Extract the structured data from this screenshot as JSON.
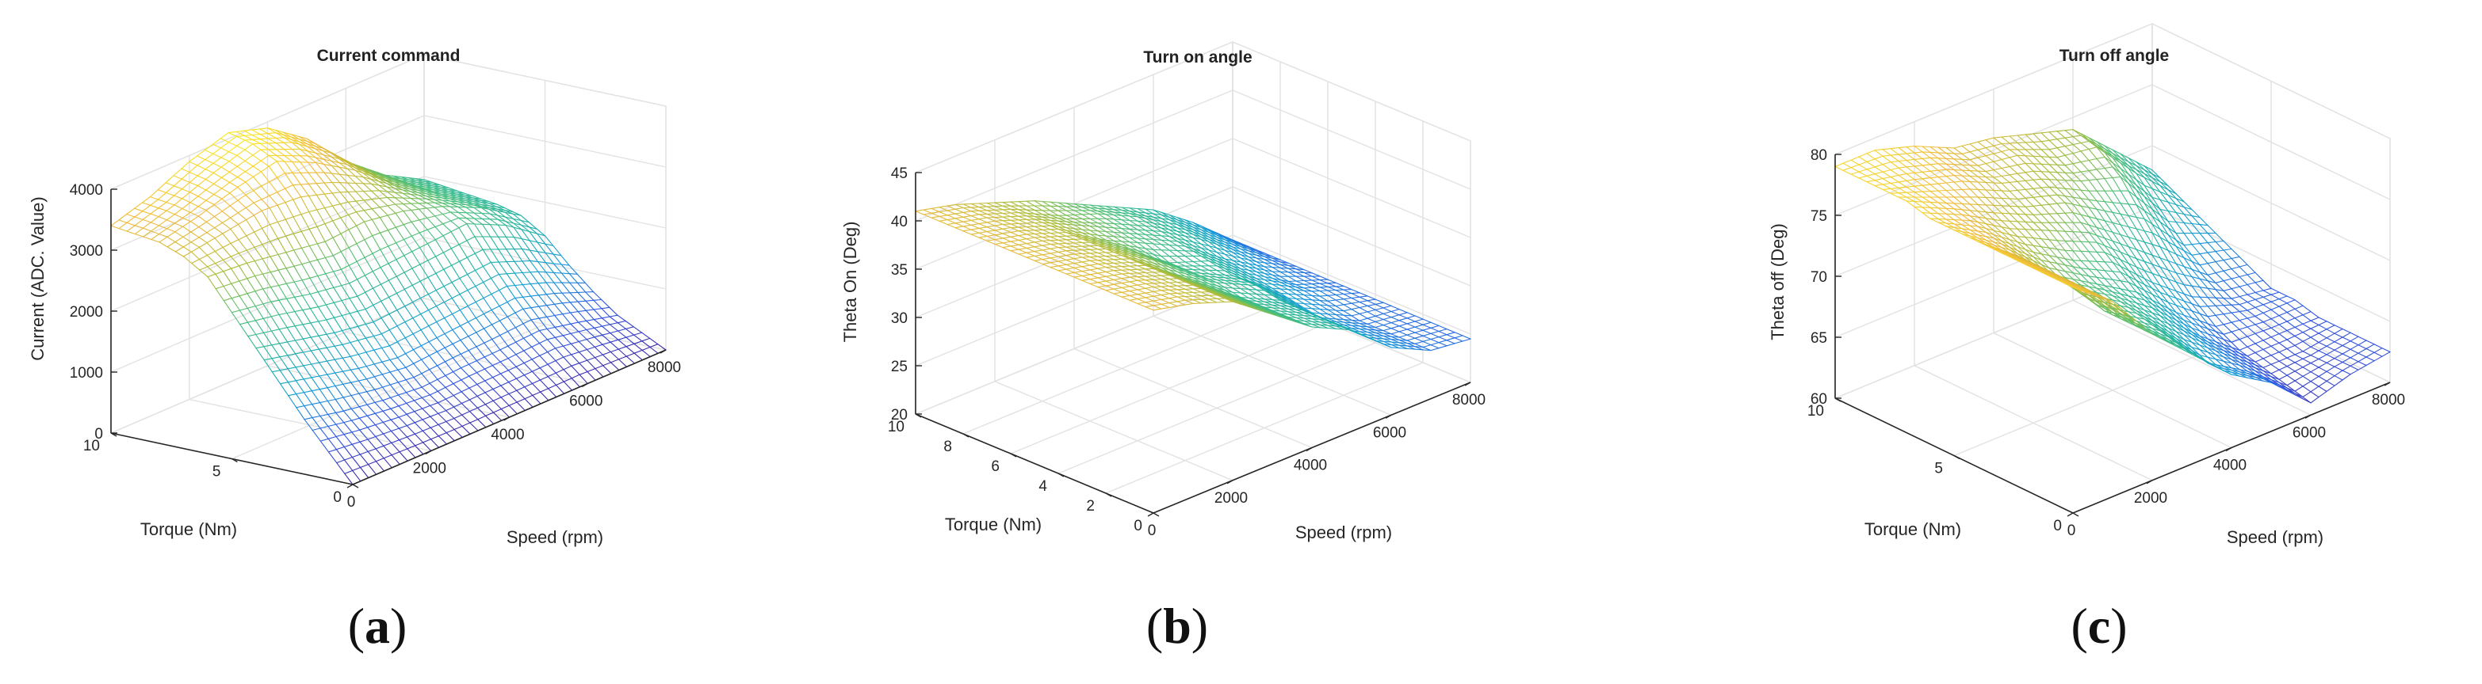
{
  "figure": {
    "captions": [
      "a",
      "b",
      "c"
    ]
  },
  "colormap": [
    "#3e26a8",
    "#2e5ae6",
    "#149bd6",
    "#21b3a4",
    "#4bbf7a",
    "#a9bd3b",
    "#f0ba3a",
    "#f9e424"
  ],
  "chart_data": [
    {
      "type": "surface-mesh",
      "panel": "a",
      "title": "Current command",
      "xlabel": "Speed (rpm)",
      "ylabel": "Torque (Nm)",
      "zlabel": "Current (ADC. Value)",
      "xlim": [
        0,
        8000
      ],
      "ylim": [
        0,
        10
      ],
      "zlim": [
        0,
        4000
      ],
      "xticks": [
        0,
        2000,
        4000,
        6000,
        8000
      ],
      "xtick_labels": [
        "0",
        "2000",
        "4000",
        "6000",
        "8000"
      ],
      "yticks": [
        0,
        5,
        10
      ],
      "ytick_labels": [
        "0",
        "5",
        "10"
      ],
      "zticks": [
        0,
        1000,
        2000,
        3000,
        4000
      ],
      "ztick_labels": [
        "0",
        "1000",
        "2000",
        "3000",
        "4000"
      ],
      "speed": [
        0,
        1000,
        2000,
        3000,
        4000,
        5000,
        6000,
        7000,
        8000
      ],
      "torque": [
        0,
        1,
        2,
        3,
        4,
        5,
        6,
        7,
        8,
        9,
        10
      ],
      "z": [
        [
          0,
          0,
          0,
          0,
          0,
          0,
          0,
          0,
          0
        ],
        [
          450,
          380,
          330,
          300,
          320,
          330,
          350,
          280,
          200
        ],
        [
          900,
          760,
          660,
          600,
          640,
          660,
          700,
          560,
          400
        ],
        [
          1400,
          1250,
          1100,
          1000,
          1050,
          1100,
          1150,
          950,
          700
        ],
        [
          1900,
          1750,
          1600,
          1500,
          1550,
          1600,
          1650,
          1400,
          1050
        ],
        [
          2400,
          2300,
          2150,
          2050,
          2100,
          2150,
          2200,
          1900,
          1450
        ],
        [
          2900,
          2850,
          2750,
          2650,
          2700,
          2600,
          2400,
          2100,
          1700
        ],
        [
          3150,
          3250,
          3350,
          3300,
          3100,
          2850,
          2500,
          2150,
          1800
        ],
        [
          3300,
          3450,
          3650,
          3800,
          3500,
          3100,
          2600,
          2200,
          1850
        ],
        [
          3350,
          3550,
          3800,
          4000,
          3750,
          3300,
          2700,
          2250,
          1900
        ],
        [
          3400,
          3600,
          3900,
          4100,
          3900,
          3450,
          2800,
          2300,
          1950
        ]
      ]
    },
    {
      "type": "surface-mesh",
      "panel": "b",
      "title": "Turn on angle",
      "xlabel": "Speed (rpm)",
      "ylabel": "Torque (Nm)",
      "zlabel": "Theta On (Deg)",
      "xlim": [
        0,
        8000
      ],
      "ylim": [
        0,
        10
      ],
      "zlim": [
        20,
        45
      ],
      "xticks": [
        0,
        2000,
        4000,
        6000,
        8000
      ],
      "xtick_labels": [
        "0",
        "2000",
        "4000",
        "6000",
        "8000"
      ],
      "yticks": [
        0,
        2,
        4,
        6,
        8,
        10
      ],
      "ytick_labels": [
        "0",
        "2",
        "4",
        "6",
        "8",
        "10"
      ],
      "zticks": [
        20,
        25,
        30,
        35,
        40,
        45
      ],
      "ztick_labels": [
        "20",
        "25",
        "30",
        "35",
        "40",
        "45"
      ],
      "speed": [
        0,
        1000,
        2000,
        3000,
        4000,
        5000,
        6000,
        7000,
        8000
      ],
      "torque": [
        0,
        1,
        2,
        3,
        4,
        5,
        6,
        7,
        8,
        9,
        10
      ],
      "z": [
        [
          41,
          40,
          38.5,
          35.5,
          32.5,
          30.5,
          27,
          25,
          24.5
        ],
        [
          41,
          40,
          38.5,
          35.5,
          32.5,
          30.5,
          27,
          25,
          24.5
        ],
        [
          41,
          40,
          38.5,
          35.5,
          32.5,
          30.5,
          27,
          25,
          24.5
        ],
        [
          41,
          40,
          38.5,
          35.5,
          32.5,
          30.5,
          27,
          25,
          24.5
        ],
        [
          41,
          40,
          38.5,
          35.5,
          33,
          31,
          27.5,
          25.5,
          24.5
        ],
        [
          41,
          40,
          38.5,
          36,
          33,
          31,
          28,
          26,
          24.5
        ],
        [
          41,
          40,
          38.5,
          36,
          33,
          31.5,
          28.5,
          26,
          24.5
        ],
        [
          41,
          40,
          38.5,
          36,
          34,
          32,
          29,
          26.5,
          24.5
        ],
        [
          41,
          40,
          38.5,
          36.5,
          34.5,
          32.5,
          30,
          27,
          24.5
        ],
        [
          41,
          40,
          38.5,
          36.5,
          35,
          33,
          30.5,
          27.5,
          24.5
        ],
        [
          41,
          40,
          38.5,
          37,
          35,
          33,
          31,
          28,
          24.5
        ]
      ]
    },
    {
      "type": "surface-mesh",
      "panel": "c",
      "title": "Turn off angle",
      "xlabel": "Speed (rpm)",
      "ylabel": "Torque (Nm)",
      "zlabel": "Theta off (Deg)",
      "xlim": [
        0,
        8000
      ],
      "ylim": [
        0,
        10
      ],
      "zlim": [
        60,
        80
      ],
      "xticks": [
        0,
        2000,
        4000,
        6000,
        8000
      ],
      "xtick_labels": [
        "0",
        "2000",
        "4000",
        "6000",
        "8000"
      ],
      "yticks": [
        0,
        5,
        10
      ],
      "ytick_labels": [
        "0",
        "5",
        "10"
      ],
      "zticks": [
        60,
        65,
        70,
        75,
        80
      ],
      "ztick_labels": [
        "60",
        "65",
        "70",
        "75",
        "80"
      ],
      "speed": [
        0,
        1000,
        2000,
        3000,
        4000,
        5000,
        6000,
        7000,
        8000
      ],
      "torque": [
        0,
        1,
        2,
        3,
        4,
        5,
        6,
        7,
        8,
        9,
        10
      ],
      "z": [
        [
          78.5,
          76,
          72,
          69,
          66,
          64,
          61,
          62,
          62.5
        ],
        [
          78.5,
          76,
          72,
          69.5,
          66,
          64,
          61.5,
          62,
          62.5
        ],
        [
          78.5,
          76,
          72,
          70,
          67,
          64.5,
          62,
          62,
          62.5
        ],
        [
          78.5,
          76,
          72.5,
          70.5,
          68,
          65,
          62.5,
          62.5,
          62.5
        ],
        [
          78.5,
          76,
          73,
          71,
          69,
          66,
          63.5,
          63,
          63
        ],
        [
          78.5,
          76.5,
          74,
          72,
          70.5,
          67.5,
          65,
          63.5,
          63
        ],
        [
          78.5,
          77,
          75,
          73.5,
          72,
          69.5,
          67,
          64.5,
          64
        ],
        [
          79,
          77.5,
          76,
          74.5,
          73.5,
          71.5,
          69.5,
          66,
          65
        ],
        [
          79,
          78,
          77,
          75.5,
          74.5,
          73,
          72,
          68,
          66
        ],
        [
          79,
          78.5,
          77.5,
          76,
          75.5,
          74,
          73.5,
          70,
          67
        ],
        [
          79,
          79,
          78,
          76.5,
          76,
          75,
          74,
          71,
          68
        ]
      ]
    }
  ]
}
